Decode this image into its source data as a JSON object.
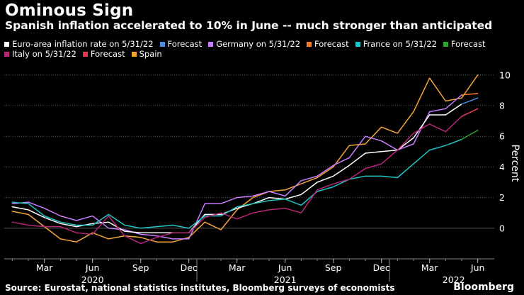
{
  "header": {
    "title": "Ominous Sign",
    "subtitle": "Spanish inflation accelerated to 10% in June -- much stronger than anticipated"
  },
  "footer": {
    "source": "Source: Eurostat, national statistics institutes, Bloomberg surveys of economists",
    "brand": "Bloomberg"
  },
  "colors": {
    "euro": "#ffffff",
    "euro_fc": "#4a90e2",
    "germany": "#c77dff",
    "germany_fc": "#ff7a22",
    "france": "#20c4c4",
    "france_fc": "#2fa52f",
    "italy": "#b8267a",
    "italy_fc": "#e63950",
    "spain": "#f5a536"
  },
  "legend": {
    "rows": [
      [
        {
          "label": "Euro-area inflation rate on 5/31/22",
          "color": "#ffffff"
        },
        {
          "label": "Forecast",
          "color": "#4a90e2"
        },
        {
          "label": "Germany on 5/31/22",
          "color": "#c77dff"
        },
        {
          "label": "Forecast",
          "color": "#ff7a22"
        },
        {
          "label": "France on 5/31/22",
          "color": "#20c4c4"
        },
        {
          "label": "Forecast",
          "color": "#2fa52f"
        }
      ],
      [
        {
          "label": "Italy on 5/31/22",
          "color": "#b8267a"
        },
        {
          "label": "Forecast",
          "color": "#e63950"
        },
        {
          "label": "Spain",
          "color": "#f5a536"
        }
      ]
    ]
  },
  "chart_data": {
    "type": "line",
    "title": "Ominous Sign",
    "ylabel": "Percent",
    "ylim": [
      -2,
      10.5
    ],
    "yticks": [
      0,
      2,
      4,
      6,
      8,
      10
    ],
    "x_start": "2020-01",
    "x_count": 30,
    "x_ticks": [
      {
        "index": 2,
        "label": "Mar"
      },
      {
        "index": 5,
        "label": "Jun"
      },
      {
        "index": 8,
        "label": "Sep"
      },
      {
        "index": 11,
        "label": "Dec"
      },
      {
        "index": 14,
        "label": "Mar"
      },
      {
        "index": 17,
        "label": "Jun"
      },
      {
        "index": 20,
        "label": "Sep"
      },
      {
        "index": 23,
        "label": "Dec"
      },
      {
        "index": 26,
        "label": "Mar"
      },
      {
        "index": 29,
        "label": "Jun"
      }
    ],
    "year_labels": [
      {
        "index": 5,
        "label": "2020"
      },
      {
        "index": 17,
        "label": "2021"
      },
      {
        "index": 27.5,
        "label": "2022"
      }
    ],
    "series": [
      {
        "name": "Spain",
        "color": "#f5a536",
        "start": 0,
        "values": [
          1.1,
          0.9,
          0.1,
          -0.7,
          -0.9,
          -0.3,
          -0.7,
          -0.5,
          -0.6,
          -0.9,
          -0.9,
          -0.6,
          0.4,
          -0.1,
          1.2,
          2.0,
          2.4,
          2.5,
          2.9,
          3.3,
          4.0,
          5.4,
          5.5,
          6.6,
          6.2,
          7.6,
          9.8,
          8.3,
          8.5,
          10.0
        ]
      },
      {
        "name": "Germany on 5/31/22",
        "color": "#c77dff",
        "start": 0,
        "values": [
          1.6,
          1.7,
          1.3,
          0.8,
          0.5,
          0.8,
          0.0,
          -0.1,
          -0.4,
          -0.5,
          -0.7,
          -0.7,
          1.6,
          1.6,
          2.0,
          2.1,
          2.4,
          2.1,
          3.1,
          3.4,
          4.1,
          4.6,
          6.0,
          5.7,
          5.1,
          5.5,
          7.6,
          7.8,
          8.7
        ]
      },
      {
        "name": "Germany forecast",
        "color": "#ff7a22",
        "start": 28,
        "values": [
          8.7,
          8.8
        ]
      },
      {
        "name": "Euro-area inflation rate on 5/31/22",
        "color": "#ffffff",
        "start": 0,
        "values": [
          1.4,
          1.2,
          0.7,
          0.3,
          0.1,
          0.3,
          0.4,
          -0.2,
          -0.3,
          -0.3,
          -0.3,
          -0.3,
          0.9,
          0.9,
          1.3,
          1.6,
          2.0,
          1.9,
          2.2,
          3.0,
          3.4,
          4.1,
          4.9,
          5.0,
          5.1,
          5.9,
          7.4,
          7.4,
          8.1
        ]
      },
      {
        "name": "Euro-area forecast",
        "color": "#4a90e2",
        "start": 28,
        "values": [
          8.1,
          8.5
        ]
      },
      {
        "name": "France on 5/31/22",
        "color": "#20c4c4",
        "start": 0,
        "values": [
          1.7,
          1.6,
          0.8,
          0.4,
          0.2,
          0.2,
          0.9,
          0.2,
          0.0,
          0.1,
          0.2,
          0.0,
          0.8,
          0.8,
          1.4,
          1.6,
          1.8,
          1.9,
          1.5,
          2.4,
          2.7,
          3.2,
          3.4,
          3.4,
          3.3,
          4.2,
          5.1,
          5.4,
          5.8
        ]
      },
      {
        "name": "France forecast",
        "color": "#2fa52f",
        "start": 28,
        "values": [
          5.8,
          6.4
        ]
      },
      {
        "name": "Italy on 5/31/22",
        "color": "#b8267a",
        "start": 0,
        "values": [
          0.4,
          0.2,
          0.1,
          0.1,
          -0.3,
          -0.4,
          0.8,
          -0.5,
          -1.0,
          -0.6,
          -0.3,
          -0.3,
          0.7,
          1.0,
          0.6,
          1.0,
          1.2,
          1.3,
          1.0,
          2.5,
          2.9,
          3.2,
          3.9,
          4.2,
          5.1,
          6.2,
          6.8,
          6.3,
          7.3
        ]
      },
      {
        "name": "Italy forecast",
        "color": "#e63950",
        "start": 28,
        "values": [
          7.3,
          7.8
        ]
      }
    ]
  }
}
